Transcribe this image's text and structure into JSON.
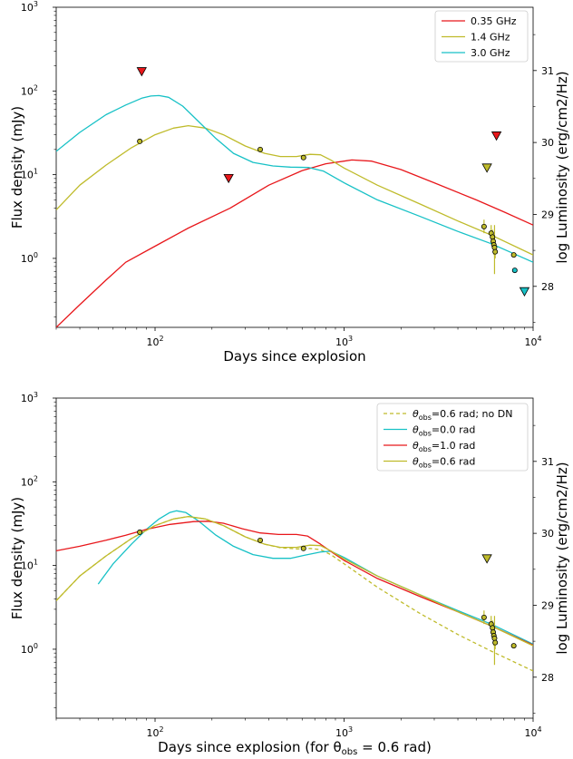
{
  "chart_data": [
    {
      "type": "line",
      "xlabel": "Days since explosion",
      "ylabel": "Flux density (mJy)",
      "y2label": "log Luminosity (erg/cm2/Hz)",
      "xscale": "log",
      "yscale": "log",
      "xlim": [
        30,
        10000
      ],
      "ylim": [
        0.15,
        1000
      ],
      "y2lim": [
        27.43,
        31.88
      ],
      "xticks": [
        {
          "v": 100,
          "b": "10",
          "e": "2"
        },
        {
          "v": 1000,
          "b": "10",
          "e": "3"
        },
        {
          "v": 10000,
          "b": "10",
          "e": "4"
        }
      ],
      "yticks": [
        {
          "v": 1,
          "b": "10",
          "e": "0"
        },
        {
          "v": 10,
          "b": "10",
          "e": "1"
        },
        {
          "v": 100,
          "b": "10",
          "e": "2"
        },
        {
          "v": 1000,
          "b": "10",
          "e": "3"
        }
      ],
      "y2ticks": [
        "28",
        "29",
        "30",
        "31"
      ],
      "legend_position": "top-right",
      "series": [
        {
          "name": "0.35 GHz",
          "color": "#e8171b",
          "dash": false,
          "points": [
            [
              30,
              0.15
            ],
            [
              40,
              0.28
            ],
            [
              55,
              0.55
            ],
            [
              70,
              0.9
            ],
            [
              100,
              1.4
            ],
            [
              150,
              2.3
            ],
            [
              250,
              4.0
            ],
            [
              400,
              7.5
            ],
            [
              600,
              11.2
            ],
            [
              800,
              13.5
            ],
            [
              1100,
              15.0
            ],
            [
              1400,
              14.5
            ],
            [
              2000,
              11.5
            ],
            [
              3000,
              8.0
            ],
            [
              5000,
              5.0
            ],
            [
              7000,
              3.6
            ],
            [
              10000,
              2.5
            ]
          ]
        },
        {
          "name": "1.4 GHz",
          "color": "#bfbb2b",
          "dash": false,
          "points": [
            [
              30,
              3.8
            ],
            [
              40,
              7.5
            ],
            [
              55,
              13
            ],
            [
              75,
              21
            ],
            [
              100,
              30
            ],
            [
              125,
              36
            ],
            [
              150,
              38.5
            ],
            [
              185,
              36
            ],
            [
              230,
              30
            ],
            [
              300,
              22
            ],
            [
              380,
              18
            ],
            [
              460,
              16.5
            ],
            [
              560,
              16.5
            ],
            [
              660,
              17.5
            ],
            [
              750,
              17.3
            ],
            [
              850,
              15
            ],
            [
              1000,
              12
            ],
            [
              1500,
              7.5
            ],
            [
              2500,
              4.5
            ],
            [
              4000,
              2.8
            ],
            [
              6000,
              1.9
            ],
            [
              10000,
              1.1
            ]
          ]
        },
        {
          "name": "3.0 GHz",
          "color": "#17c1c6",
          "dash": false,
          "points": [
            [
              30,
              19
            ],
            [
              40,
              32
            ],
            [
              55,
              52
            ],
            [
              70,
              68
            ],
            [
              85,
              82
            ],
            [
              95,
              87
            ],
            [
              105,
              88
            ],
            [
              118,
              84
            ],
            [
              140,
              66
            ],
            [
              170,
              43
            ],
            [
              210,
              27
            ],
            [
              260,
              18
            ],
            [
              330,
              14
            ],
            [
              420,
              12.7
            ],
            [
              520,
              12.3
            ],
            [
              650,
              12.2
            ],
            [
              780,
              11
            ],
            [
              1000,
              8
            ],
            [
              1500,
              5
            ],
            [
              2500,
              3.2
            ],
            [
              4000,
              2.1
            ],
            [
              6000,
              1.5
            ],
            [
              10000,
              0.9
            ]
          ]
        }
      ],
      "detections": [
        {
          "x": 83,
          "y": 25
        },
        {
          "x": 360,
          "y": 20
        },
        {
          "x": 610,
          "y": 16
        },
        {
          "x": 5500,
          "y": 2.4,
          "err": [
            2.0,
            2.9
          ]
        },
        {
          "x": 6000,
          "y": 2.0,
          "err": [
            1.7,
            2.5
          ]
        },
        {
          "x": 6100,
          "y": 1.8,
          "err": [
            1.5,
            2.2
          ]
        },
        {
          "x": 6150,
          "y": 1.6,
          "err": [
            1.3,
            2.0
          ]
        },
        {
          "x": 6200,
          "y": 1.45,
          "err": [
            1.1,
            1.9
          ]
        },
        {
          "x": 6250,
          "y": 1.35,
          "err": [
            0.65,
            2.5
          ]
        },
        {
          "x": 6300,
          "y": 1.2,
          "err": [
            1.0,
            1.5
          ]
        },
        {
          "x": 7900,
          "y": 1.1
        }
      ],
      "detection_color": "#bfbb2b",
      "detections_cyan": [
        {
          "x": 8000,
          "y": 0.72
        }
      ],
      "upper_limits": [
        {
          "x": 85,
          "y": 170,
          "color": "#e8171b"
        },
        {
          "x": 245,
          "y": 9,
          "color": "#e8171b"
        },
        {
          "x": 6400,
          "y": 29,
          "color": "#e8171b"
        },
        {
          "x": 5700,
          "y": 12,
          "color": "#bfbb2b"
        },
        {
          "x": 9000,
          "y": 0.4,
          "color": "#17c1c6"
        }
      ]
    },
    {
      "type": "line",
      "xlabel": "Days since explosion (for θ",
      "xlabel_sub": "obs",
      "xlabel_tail": " = 0.6 rad)",
      "ylabel": "Flux density (mJy)",
      "y2label": "log Luminosity (erg/cm2/Hz)",
      "xscale": "log",
      "yscale": "log",
      "xlim": [
        30,
        10000
      ],
      "ylim": [
        0.15,
        1000
      ],
      "y2lim": [
        27.43,
        31.88
      ],
      "xticks": [
        {
          "v": 100,
          "b": "10",
          "e": "2"
        },
        {
          "v": 1000,
          "b": "10",
          "e": "3"
        },
        {
          "v": 10000,
          "b": "10",
          "e": "4"
        }
      ],
      "yticks": [
        {
          "v": 1,
          "b": "10",
          "e": "0"
        },
        {
          "v": 10,
          "b": "10",
          "e": "1"
        },
        {
          "v": 100,
          "b": "10",
          "e": "2"
        },
        {
          "v": 1000,
          "b": "10",
          "e": "3"
        }
      ],
      "y2ticks": [
        "28",
        "29",
        "30",
        "31"
      ],
      "legend_position": "top-right",
      "series": [
        {
          "name_prefix": "θ",
          "name_sub": "obs",
          "name_tail": "=0.6 rad; no DN",
          "color": "#bfbb2b",
          "dash": true,
          "points": [
            [
              30,
              3.8
            ],
            [
              40,
              7.5
            ],
            [
              55,
              13
            ],
            [
              75,
              21
            ],
            [
              100,
              30
            ],
            [
              125,
              36
            ],
            [
              150,
              38.5
            ],
            [
              185,
              36
            ],
            [
              230,
              30
            ],
            [
              300,
              22
            ],
            [
              380,
              18
            ],
            [
              460,
              16.3
            ],
            [
              560,
              15.8
            ],
            [
              660,
              16
            ],
            [
              750,
              15.5
            ],
            [
              850,
              13.5
            ],
            [
              1000,
              10.5
            ],
            [
              1500,
              5.5
            ],
            [
              2500,
              2.7
            ],
            [
              4000,
              1.5
            ],
            [
              6000,
              0.95
            ],
            [
              10000,
              0.55
            ]
          ]
        },
        {
          "name_prefix": "θ",
          "name_sub": "obs",
          "name_tail": "=0.0 rad",
          "color": "#17c1c6",
          "dash": false,
          "points": [
            [
              50,
              6
            ],
            [
              60,
              10.5
            ],
            [
              75,
              18
            ],
            [
              90,
              27
            ],
            [
              105,
              36
            ],
            [
              120,
              43
            ],
            [
              130,
              45
            ],
            [
              145,
              43
            ],
            [
              170,
              34
            ],
            [
              210,
              23
            ],
            [
              260,
              17
            ],
            [
              330,
              13.5
            ],
            [
              420,
              12.2
            ],
            [
              520,
              12.2
            ],
            [
              620,
              13.3
            ],
            [
              750,
              14.5
            ],
            [
              850,
              14.8
            ],
            [
              1000,
              12.5
            ],
            [
              1500,
              7.5
            ],
            [
              2500,
              4.5
            ],
            [
              4000,
              2.9
            ],
            [
              6000,
              2.0
            ],
            [
              10000,
              1.15
            ]
          ]
        },
        {
          "name_prefix": "θ",
          "name_sub": "obs",
          "name_tail": "=1.0 rad",
          "color": "#e8171b",
          "dash": false,
          "points": [
            [
              30,
              15
            ],
            [
              40,
              17
            ],
            [
              55,
              20
            ],
            [
              70,
              23
            ],
            [
              90,
              27
            ],
            [
              120,
              31
            ],
            [
              160,
              33.5
            ],
            [
              190,
              33.8
            ],
            [
              230,
              32
            ],
            [
              290,
              27.5
            ],
            [
              360,
              24.5
            ],
            [
              450,
              23.5
            ],
            [
              560,
              23.5
            ],
            [
              640,
              22.5
            ],
            [
              750,
              18
            ],
            [
              900,
              13.5
            ],
            [
              1000,
              11.5
            ],
            [
              1500,
              7
            ],
            [
              2500,
              4.3
            ],
            [
              4000,
              2.8
            ],
            [
              6000,
              1.9
            ],
            [
              10000,
              1.12
            ]
          ]
        },
        {
          "name_prefix": "θ",
          "name_sub": "obs",
          "name_tail": "=0.6 rad",
          "color": "#bfbb2b",
          "dash": false,
          "points": [
            [
              30,
              3.8
            ],
            [
              40,
              7.5
            ],
            [
              55,
              13
            ],
            [
              75,
              21
            ],
            [
              100,
              30
            ],
            [
              125,
              36
            ],
            [
              150,
              38.5
            ],
            [
              185,
              36
            ],
            [
              230,
              30
            ],
            [
              300,
              22
            ],
            [
              380,
              18
            ],
            [
              460,
              16.5
            ],
            [
              560,
              16.5
            ],
            [
              660,
              17.5
            ],
            [
              750,
              17.3
            ],
            [
              850,
              15
            ],
            [
              1000,
              12
            ],
            [
              1500,
              7.5
            ],
            [
              2500,
              4.5
            ],
            [
              4000,
              2.8
            ],
            [
              6000,
              1.9
            ],
            [
              10000,
              1.1
            ]
          ]
        }
      ],
      "detections": [
        {
          "x": 83,
          "y": 25
        },
        {
          "x": 360,
          "y": 20
        },
        {
          "x": 610,
          "y": 16
        },
        {
          "x": 5500,
          "y": 2.4,
          "err": [
            2.0,
            2.9
          ]
        },
        {
          "x": 6000,
          "y": 2.0,
          "err": [
            1.7,
            2.5
          ]
        },
        {
          "x": 6100,
          "y": 1.8,
          "err": [
            1.5,
            2.2
          ]
        },
        {
          "x": 6150,
          "y": 1.6,
          "err": [
            1.3,
            2.0
          ]
        },
        {
          "x": 6200,
          "y": 1.45,
          "err": [
            1.1,
            1.9
          ]
        },
        {
          "x": 6250,
          "y": 1.35,
          "err": [
            0.65,
            2.5
          ]
        },
        {
          "x": 6300,
          "y": 1.2,
          "err": [
            1.0,
            1.5
          ]
        },
        {
          "x": 7900,
          "y": 1.1
        }
      ],
      "detection_color": "#bfbb2b",
      "detections_cyan": [],
      "upper_limits": [
        {
          "x": 5700,
          "y": 12,
          "color": "#bfbb2b"
        }
      ]
    }
  ]
}
